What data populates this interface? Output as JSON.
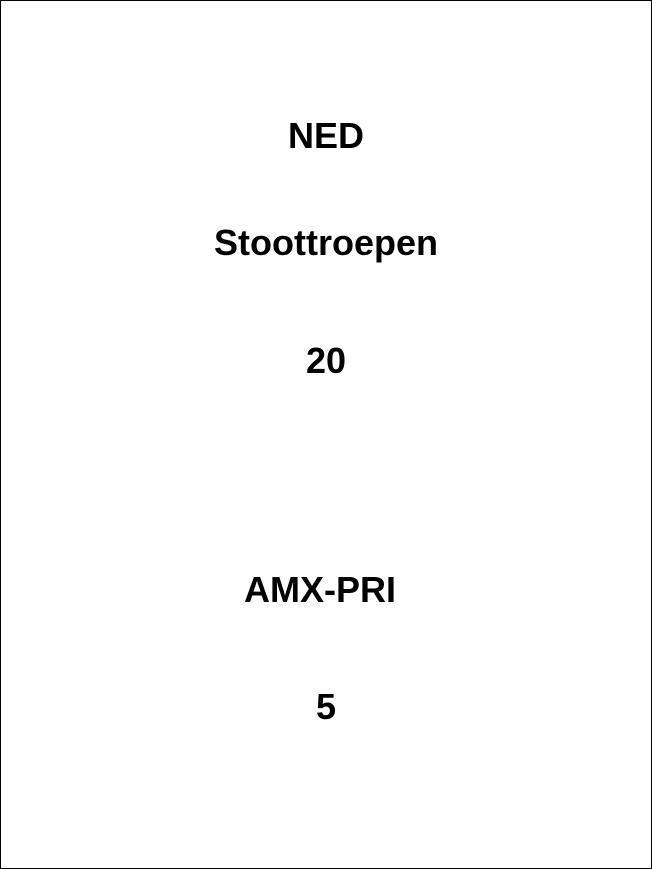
{
  "card": {
    "country": "NED",
    "unit": "Stoottroepen",
    "unit_count": "20",
    "vehicle": "AMX-PRI",
    "vehicle_count": "5"
  },
  "colors": {
    "background": "#ffffff",
    "text": "#000000",
    "border": "#000000"
  }
}
